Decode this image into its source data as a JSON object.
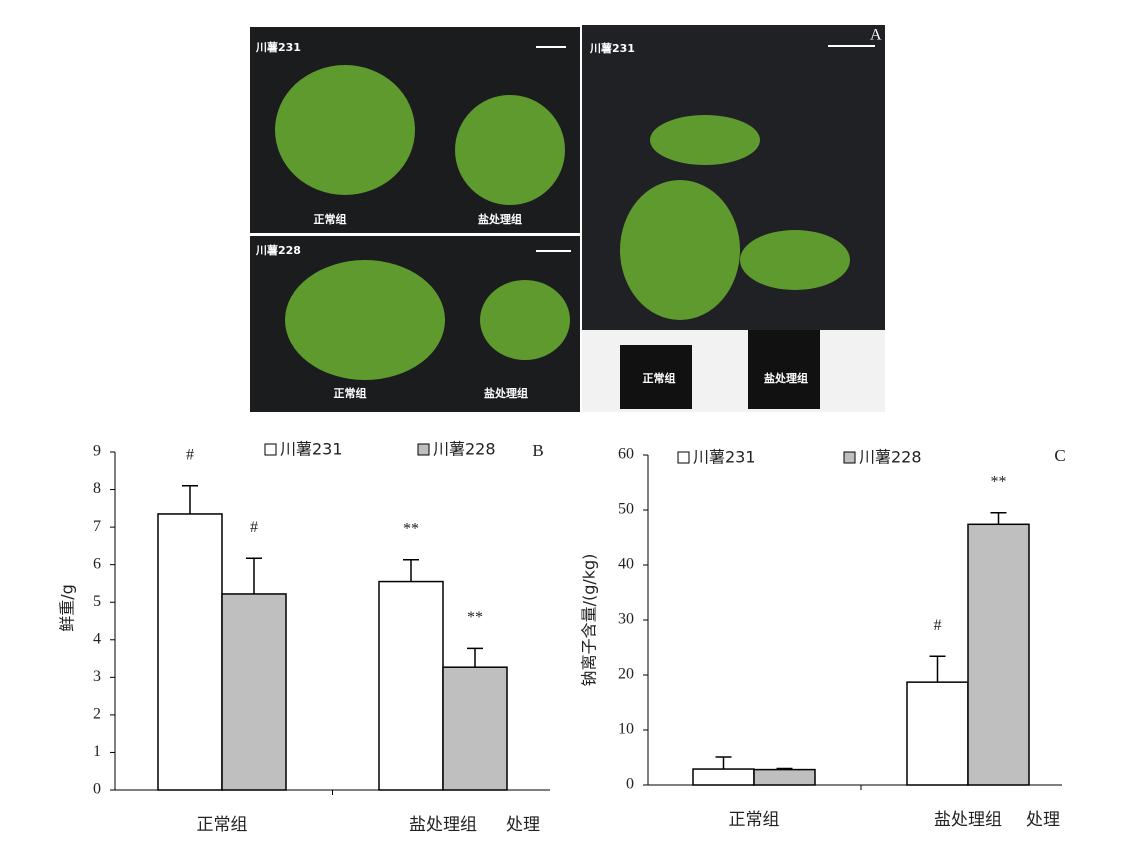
{
  "photos": {
    "letter": "A",
    "top_left": {
      "variety": "川薯231",
      "labels": [
        "正常组",
        "盐处理组"
      ]
    },
    "bottom_left": {
      "variety": "川薯228",
      "labels": [
        "正常组",
        "盐处理组"
      ]
    },
    "right": {
      "variety": "川薯231",
      "labels": [
        "正常组",
        "盐处理组"
      ]
    }
  },
  "chart_data": [
    {
      "type": "bar",
      "panel": "B",
      "y_label": "鲜重/g",
      "x_label": "处理",
      "categories": [
        "正常组",
        "盐处理组"
      ],
      "series": [
        {
          "name": "川薯231",
          "color": "#ffffff",
          "values": [
            7.35,
            5.55
          ],
          "errors": [
            0.75,
            0.58
          ],
          "annotations": [
            "#",
            "**"
          ]
        },
        {
          "name": "川薯228",
          "color": "#bfbfbf",
          "values": [
            5.22,
            3.27
          ],
          "errors": [
            0.95,
            0.5
          ],
          "annotations": [
            "#",
            "**"
          ]
        }
      ],
      "ylim": [
        0,
        9
      ],
      "yticks": [
        0,
        1,
        2,
        3,
        4,
        5,
        6,
        7,
        8,
        9
      ]
    },
    {
      "type": "bar",
      "panel": "C",
      "y_label": "钠离子含量/(g/kg)",
      "x_label": "处理",
      "categories": [
        "正常组",
        "盐处理组"
      ],
      "series": [
        {
          "name": "川薯231",
          "color": "#ffffff",
          "values": [
            2.9,
            18.7
          ],
          "errors": [
            2.2,
            4.7
          ],
          "annotations": [
            null,
            "#"
          ]
        },
        {
          "name": "川薯228",
          "color": "#bfbfbf",
          "values": [
            2.8,
            47.4
          ],
          "errors": [
            0.2,
            2.1
          ],
          "annotations": [
            null,
            "**"
          ]
        }
      ],
      "ylim": [
        0,
        60
      ],
      "yticks": [
        0,
        10,
        20,
        30,
        40,
        50,
        60
      ]
    }
  ]
}
